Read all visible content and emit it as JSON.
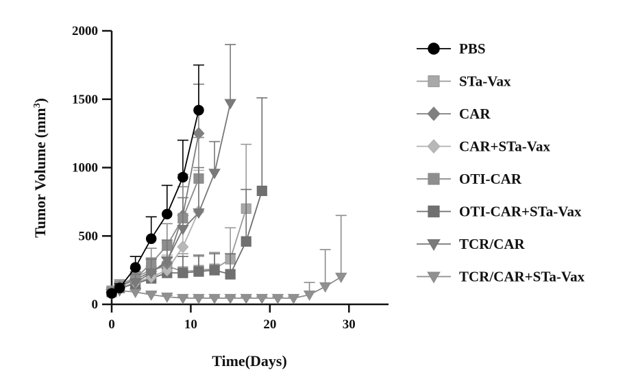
{
  "chart_data": {
    "type": "line",
    "title": "",
    "xlabel": "Time(Days)",
    "ylabel": "Tumor Volume (mm",
    "ylabel_superscript": "3",
    "ylabel_close": ")",
    "xlim": [
      0,
      35
    ],
    "ylim": [
      0,
      2000
    ],
    "xticks": [
      0,
      10,
      20,
      30
    ],
    "yticks": [
      0,
      500,
      1000,
      1500,
      2000
    ],
    "grid": false,
    "legend_position": "right",
    "series": [
      {
        "name": "PBS",
        "marker": "circle",
        "color": "#000000",
        "marker_fill": "#000000",
        "x": [
          0,
          1,
          3,
          5,
          7,
          9,
          11
        ],
        "y": [
          80,
          120,
          270,
          480,
          660,
          930,
          1420
        ],
        "err": [
          10,
          30,
          80,
          160,
          210,
          270,
          330
        ]
      },
      {
        "name": "STa-Vax",
        "marker": "square",
        "color": "#9a9a9a",
        "marker_fill": "#a8a8a8",
        "x": [
          0,
          1,
          3,
          5,
          7,
          9,
          11,
          13,
          15,
          17
        ],
        "y": [
          100,
          140,
          200,
          250,
          280,
          240,
          250,
          260,
          330,
          700
        ],
        "err": [
          20,
          40,
          70,
          90,
          120,
          130,
          100,
          120,
          230,
          470
        ]
      },
      {
        "name": "CAR",
        "marker": "diamond",
        "color": "#7d7d7d",
        "marker_fill": "#808080",
        "x": [
          0,
          1,
          3,
          5,
          7,
          9,
          11
        ],
        "y": [
          90,
          130,
          180,
          240,
          300,
          650,
          1250
        ],
        "err": [
          15,
          30,
          60,
          90,
          150,
          300,
          360
        ]
      },
      {
        "name": "CAR+STa-Vax",
        "marker": "diamond",
        "color": "#b0b0b0",
        "marker_fill": "#b8b8b8",
        "x": [
          0,
          1,
          3,
          5,
          7,
          9,
          11
        ],
        "y": [
          85,
          120,
          160,
          200,
          250,
          420,
          680
        ],
        "err": [
          15,
          25,
          50,
          80,
          110,
          180,
          300
        ]
      },
      {
        "name": "OTI-CAR",
        "marker": "square",
        "color": "#8a8a8a",
        "marker_fill": "#8e8e8e",
        "x": [
          0,
          1,
          3,
          5,
          7,
          9,
          11
        ],
        "y": [
          90,
          130,
          190,
          300,
          430,
          630,
          920
        ],
        "err": [
          15,
          35,
          70,
          110,
          160,
          230,
          300
        ]
      },
      {
        "name": "OTI-CAR+STa-Vax",
        "marker": "square",
        "color": "#6e6e6e",
        "marker_fill": "#707070",
        "x": [
          0,
          1,
          3,
          5,
          7,
          9,
          11,
          13,
          15,
          17,
          19
        ],
        "y": [
          90,
          120,
          150,
          190,
          230,
          230,
          240,
          250,
          220,
          460,
          830
        ],
        "err": [
          15,
          25,
          50,
          80,
          110,
          120,
          120,
          120,
          150,
          380,
          680
        ]
      },
      {
        "name": "TCR/CAR",
        "marker": "triangle-down",
        "color": "#777777",
        "marker_fill": "#7a7a7a",
        "x": [
          0,
          1,
          3,
          5,
          7,
          9,
          11,
          13,
          15
        ],
        "y": [
          80,
          110,
          160,
          230,
          320,
          550,
          670,
          960,
          1470
        ],
        "err": [
          10,
          25,
          60,
          100,
          150,
          230,
          330,
          230,
          430
        ]
      },
      {
        "name": "TCR/CAR+STa-Vax",
        "marker": "triangle-down",
        "color": "#8c8c8c",
        "marker_fill": "#909090",
        "x": [
          0,
          1,
          3,
          5,
          7,
          9,
          11,
          13,
          15,
          17,
          19,
          21,
          23,
          25,
          27,
          29
        ],
        "y": [
          80,
          100,
          90,
          70,
          55,
          45,
          45,
          45,
          45,
          45,
          45,
          45,
          45,
          70,
          130,
          200
        ],
        "err": [
          10,
          15,
          15,
          15,
          10,
          10,
          10,
          10,
          10,
          10,
          10,
          10,
          10,
          90,
          270,
          450
        ]
      }
    ]
  }
}
